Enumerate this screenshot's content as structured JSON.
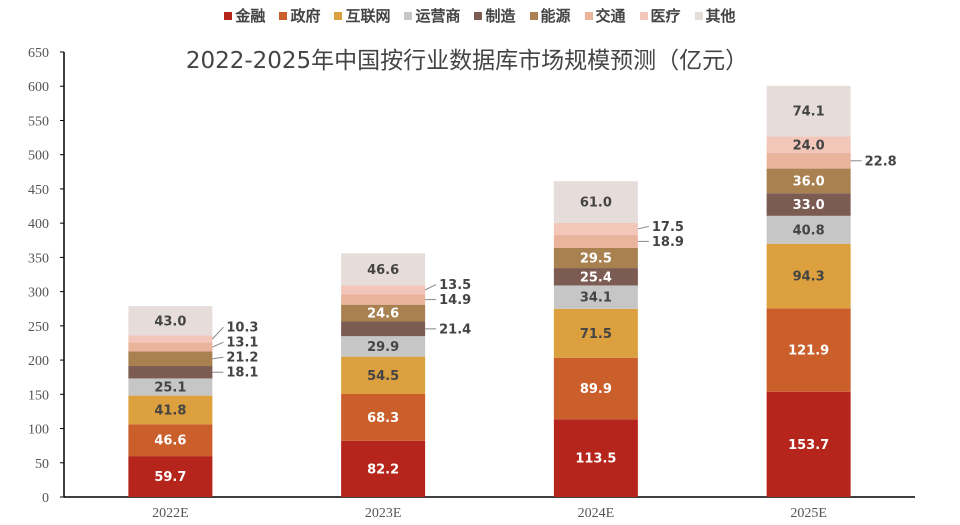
{
  "chart_data": {
    "type": "bar",
    "stacked": true,
    "title": "2022-2025年中国按行业数据库市场规模预测（亿元）",
    "categories": [
      "2022E",
      "2023E",
      "2024E",
      "2025E"
    ],
    "ylim": [
      0,
      650
    ],
    "yticks": [
      0,
      50,
      100,
      150,
      200,
      250,
      300,
      350,
      400,
      450,
      500,
      550,
      600,
      650
    ],
    "grid": false,
    "legend_position": "top",
    "series": [
      {
        "name": "金融",
        "color": "#b5251b",
        "label_color": "#ffffff",
        "values": [
          59.7,
          82.2,
          113.5,
          153.7
        ]
      },
      {
        "name": "政府",
        "color": "#cb5f2c",
        "label_color": "#ffffff",
        "values": [
          46.6,
          68.3,
          89.9,
          121.9
        ]
      },
      {
        "name": "互联网",
        "color": "#dca03e",
        "label_color": "#444444",
        "values": [
          41.8,
          54.5,
          71.5,
          94.3
        ]
      },
      {
        "name": "运营商",
        "color": "#c6c6c6",
        "label_color": "#444444",
        "values": [
          25.1,
          29.9,
          34.1,
          40.8
        ]
      },
      {
        "name": "制造",
        "color": "#7b5b52",
        "label_color": "#ffffff",
        "values": [
          18.1,
          21.4,
          25.4,
          33.0
        ]
      },
      {
        "name": "能源",
        "color": "#a98150",
        "label_color": "#ffffff",
        "values": [
          21.2,
          24.6,
          29.5,
          36.0
        ]
      },
      {
        "name": "交通",
        "color": "#eab39c",
        "label_color": "#444444",
        "values": [
          13.1,
          14.9,
          18.9,
          22.8
        ]
      },
      {
        "name": "医疗",
        "color": "#f2c6b8",
        "label_color": "#444444",
        "values": [
          10.3,
          13.5,
          17.5,
          24.0
        ]
      },
      {
        "name": "其他",
        "color": "#e6dddb",
        "label_color": "#444444",
        "values": [
          43.0,
          46.6,
          61.0,
          74.1
        ]
      }
    ]
  }
}
